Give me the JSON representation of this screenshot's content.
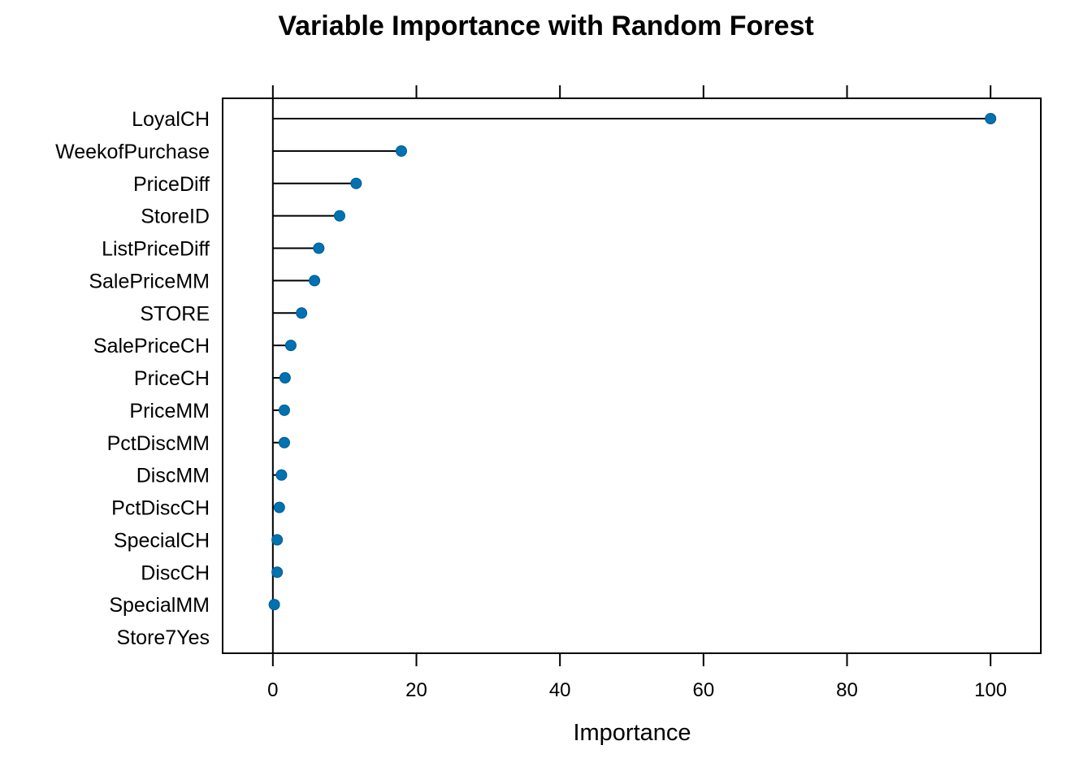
{
  "chart_data": {
    "type": "lollipop",
    "title": "Variable Importance with Random Forest",
    "xlabel": "Importance",
    "ylabel": "",
    "xlim": [
      -7,
      107
    ],
    "xticks": [
      0,
      20,
      40,
      60,
      80,
      100
    ],
    "grid": false,
    "point_color": "#0072B2",
    "line_color": "#000000",
    "categories": [
      "LoyalCH",
      "WeekofPurchase",
      "PriceDiff",
      "StoreID",
      "ListPriceDiff",
      "SalePriceMM",
      "STORE",
      "SalePriceCH",
      "PriceCH",
      "PriceMM",
      "PctDiscMM",
      "DiscMM",
      "PctDiscCH",
      "SpecialCH",
      "DiscCH",
      "SpecialMM",
      "Store7Yes"
    ],
    "values": [
      100,
      17.9,
      11.6,
      9.3,
      6.4,
      5.8,
      4.0,
      2.5,
      1.7,
      1.6,
      1.6,
      1.2,
      0.9,
      0.6,
      0.6,
      0.2,
      null
    ]
  }
}
